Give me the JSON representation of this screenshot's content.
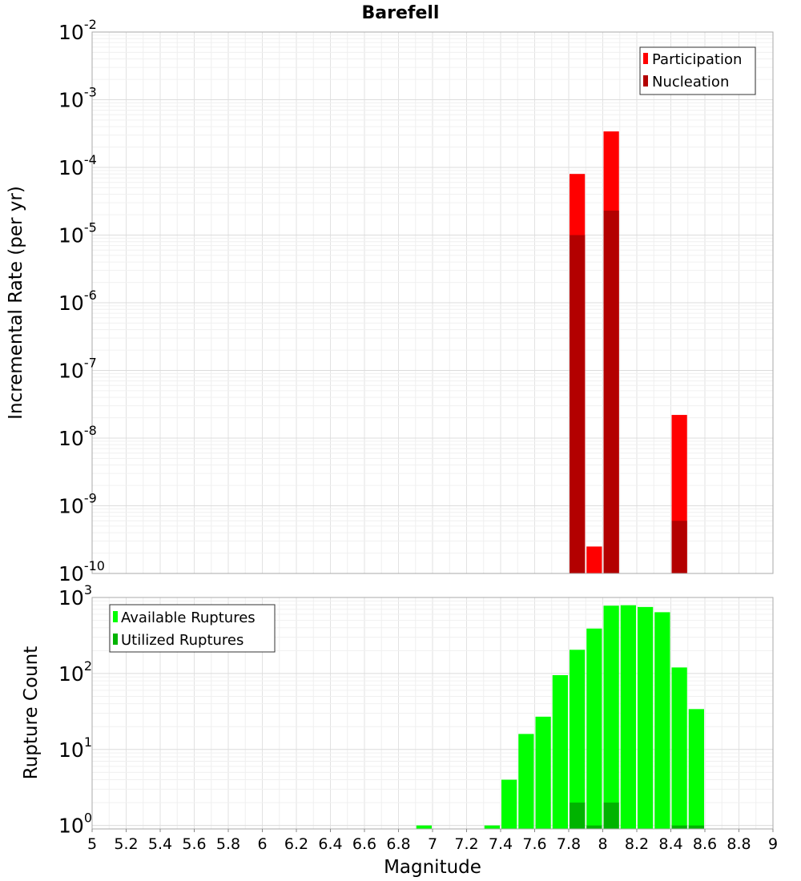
{
  "chart_data": [
    {
      "type": "bar",
      "title": "Barefell",
      "xlabel": "",
      "ylabel": "Incremental Rate (per yr)",
      "yscale": "log",
      "xlim": [
        5,
        9
      ],
      "ylim": [
        1e-10,
        0.01
      ],
      "y_ticks": [
        {
          "base": "10",
          "exp": "-2"
        },
        {
          "base": "10",
          "exp": "-3"
        },
        {
          "base": "10",
          "exp": "-4"
        },
        {
          "base": "10",
          "exp": "-5"
        },
        {
          "base": "10",
          "exp": "-6"
        },
        {
          "base": "10",
          "exp": "-7"
        },
        {
          "base": "10",
          "exp": "-8"
        },
        {
          "base": "10",
          "exp": "-9"
        },
        {
          "base": "10",
          "exp": "-10"
        }
      ],
      "bin_width": 0.1,
      "legend": {
        "position": "top-right",
        "entries": [
          "Participation",
          "Nucleation"
        ]
      },
      "series": [
        {
          "name": "Participation",
          "color": "#ff0000",
          "x": [
            7.85,
            7.95,
            8.05,
            8.45
          ],
          "values": [
            8e-05,
            2.5e-10,
            0.00034,
            2.2e-08
          ]
        },
        {
          "name": "Nucleation",
          "color": "#b30000",
          "x": [
            7.85,
            8.05,
            8.45
          ],
          "values": [
            1e-05,
            2.3e-05,
            6e-10
          ]
        }
      ],
      "grid": true
    },
    {
      "type": "bar",
      "xlabel": "Magnitude",
      "ylabel": "Rupture Count",
      "yscale": "log",
      "xlim": [
        5,
        9
      ],
      "ylim": [
        0.9,
        1000
      ],
      "y_ticks": [
        {
          "base": "10",
          "exp": "3"
        },
        {
          "base": "10",
          "exp": "2"
        },
        {
          "base": "10",
          "exp": "1"
        },
        {
          "base": "10",
          "exp": "0"
        }
      ],
      "x_ticks": [
        "5",
        "5.2",
        "5.4",
        "5.6",
        "5.8",
        "6",
        "6.2",
        "6.4",
        "6.6",
        "6.8",
        "7",
        "7.2",
        "7.4",
        "7.6",
        "7.8",
        "8",
        "8.2",
        "8.4",
        "8.6",
        "8.8",
        "9"
      ],
      "bin_width": 0.1,
      "legend": {
        "position": "top-left",
        "entries": [
          "Available Ruptures",
          "Utilized Ruptures"
        ]
      },
      "series": [
        {
          "name": "Available Ruptures",
          "color": "#00ff00",
          "x": [
            6.95,
            7.35,
            7.45,
            7.55,
            7.65,
            7.75,
            7.85,
            7.95,
            8.05,
            8.15,
            8.25,
            8.35,
            8.45,
            8.55
          ],
          "values": [
            1,
            1,
            4,
            16,
            27,
            95,
            205,
            390,
            780,
            790,
            750,
            640,
            120,
            34
          ]
        },
        {
          "name": "Utilized Ruptures",
          "color": "#00b300",
          "x": [
            7.85,
            7.95,
            8.05,
            8.45,
            8.55
          ],
          "values": [
            2,
            1,
            2,
            1,
            1
          ]
        }
      ],
      "grid": true
    }
  ]
}
